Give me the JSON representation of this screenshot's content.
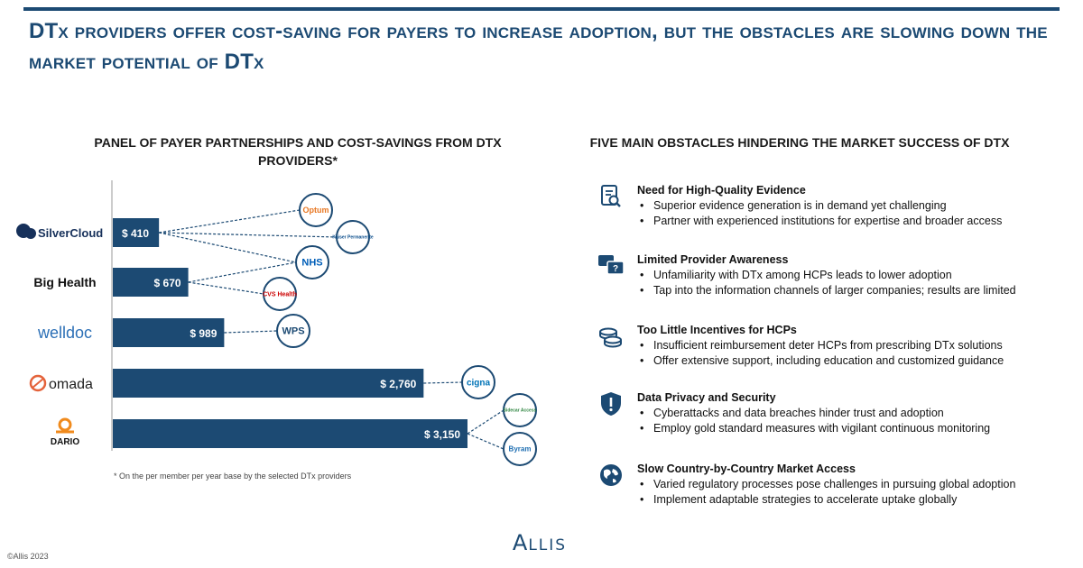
{
  "headline": "DTx providers offer cost-saving for payers to increase adoption, but the obstacles are slowing down the market potential of DTx",
  "left_section": {
    "title": "PANEL OF PAYER PARTNERSHIPS AND COST-SAVINGS FROM DTX PROVIDERS*"
  },
  "right_section": {
    "title": "FIVE MAIN OBSTACLES HINDERING THE MARKET SUCCESS OF DTX"
  },
  "chart_data": {
    "type": "bar",
    "orientation": "horizontal",
    "categories": [
      "SilverCloud",
      "Big Health",
      "welldoc",
      "omada",
      "DARIO"
    ],
    "values": [
      410,
      670,
      989,
      2760,
      3150
    ],
    "value_labels": [
      "$ 410",
      "$ 670",
      "$ 989",
      "$ 2,760",
      "$ 3,150"
    ],
    "xlim": [
      0,
      3150
    ],
    "grid": false,
    "bar_color": "#1c4a73",
    "partners": [
      {
        "provider": "SilverCloud",
        "name": "Optum",
        "icon": "optum-logo-icon"
      },
      {
        "provider": "SilverCloud",
        "name": "Kaiser Permanente",
        "icon": "kaiser-permanente-logo-icon"
      },
      {
        "provider": "SilverCloud",
        "name": "NHS",
        "icon": "nhs-logo-icon"
      },
      {
        "provider": "Big Health",
        "name": "NHS",
        "icon": "nhs-logo-icon"
      },
      {
        "provider": "Big Health",
        "name": "CVS Health",
        "icon": "cvs-health-logo-icon"
      },
      {
        "provider": "welldoc",
        "name": "WPS",
        "icon": "wps-logo-icon"
      },
      {
        "provider": "omada",
        "name": "cigna",
        "icon": "cigna-logo-icon"
      },
      {
        "provider": "DARIO",
        "name": "Sidecar Access",
        "icon": "access-logo-icon"
      },
      {
        "provider": "DARIO",
        "name": "Byram",
        "icon": "byram-logo-icon"
      }
    ]
  },
  "footnote": "* On the per member per year base by the selected DTx providers",
  "obstacles": [
    {
      "icon": "document-search-icon",
      "title": "Need for High-Quality Evidence",
      "bullets": [
        "Superior evidence generation is in demand yet challenging",
        "Partner with experienced institutions for expertise and broader access"
      ]
    },
    {
      "icon": "question-chat-icon",
      "title": "Limited Provider Awareness",
      "bullets": [
        "Unfamiliarity with DTx among HCPs leads to lower adoption",
        "Tap into the information channels of larger companies; results are limited"
      ]
    },
    {
      "icon": "coins-icon",
      "title": "Too Little Incentives for HCPs",
      "bullets": [
        "Insufficient reimbursement deter HCPs from prescribing DTx solutions",
        "Offer extensive support, including education and customized guidance"
      ]
    },
    {
      "icon": "shield-icon",
      "title": "Data Privacy and Security",
      "bullets": [
        "Cyberattacks and data breaches hinder trust and adoption",
        "Employ gold standard measures with vigilant continuous monitoring"
      ]
    },
    {
      "icon": "globe-icon",
      "title": "Slow Country-by-Country Market Access",
      "bullets": [
        "Varied regulatory processes pose challenges in pursuing global adoption",
        "Implement adaptable strategies to accelerate uptake globally"
      ]
    }
  ],
  "brand": {
    "big": "A",
    "rest": "LLIS"
  },
  "copyright": "©Allis 2023"
}
